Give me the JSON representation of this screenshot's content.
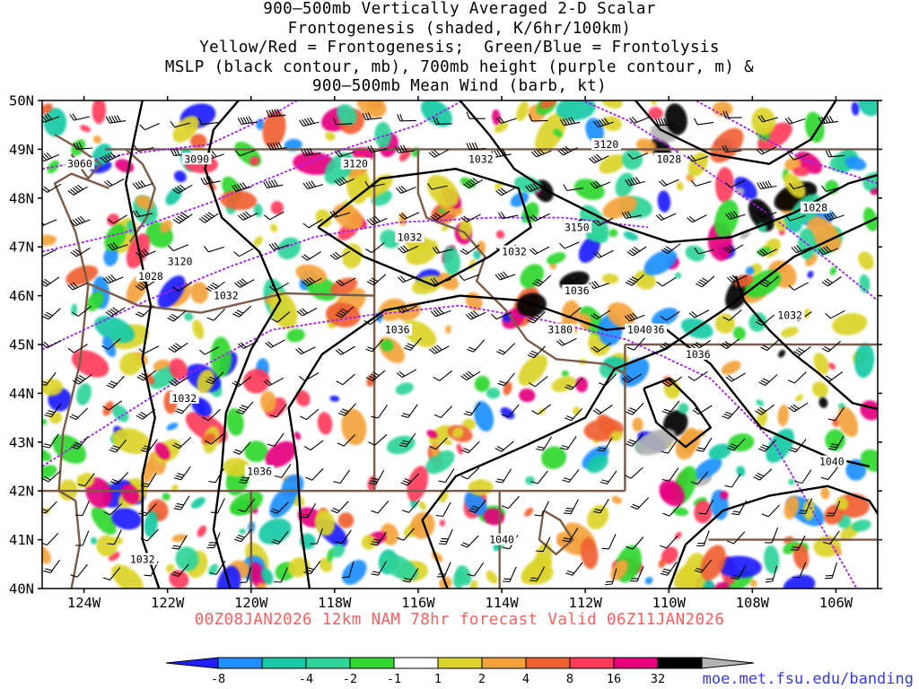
{
  "title_lines": [
    "900–500mb Vertically Averaged 2-D Scalar",
    "Frontogenesis (shaded, K/6hr/100km)",
    "Yellow/Red = Frontogenesis;  Green/Blue = Frontolysis",
    "MSLP (black contour, mb), 700mb height (purple contour, m) &",
    "900–500mb Mean Wind (barb, kt)"
  ],
  "subtitle": "00Z08JAN2026 12km NAM 78hr forecast Valid 06Z11JAN2026",
  "credit": "moe.met.fsu.edu/banding",
  "map": {
    "lon_range": [
      -125,
      -105
    ],
    "lat_range": [
      40,
      50
    ],
    "lon_labels": [
      "124W",
      "122W",
      "120W",
      "118W",
      "116W",
      "114W",
      "112W",
      "110W",
      "108W",
      "106W"
    ],
    "lat_labels": [
      "40N",
      "41N",
      "42N",
      "43N",
      "44N",
      "45N",
      "46N",
      "47N",
      "48N",
      "49N",
      "50N"
    ],
    "colors": {
      "border": "#7a5c4a",
      "mslp": "#000000",
      "height": "#a020f0",
      "barb": "#000000"
    },
    "mslp_labels": [
      "1032",
      "1032",
      "1032",
      "1028",
      "1036",
      "1036",
      "1032",
      "1036",
      "1040",
      "1036",
      "1032",
      "1040",
      "1028",
      "1032",
      "1040",
      "1036",
      "1032",
      "1028"
    ],
    "height_labels": [
      "3060",
      "3090",
      "3120",
      "3120",
      "3150",
      "3120",
      "3180"
    ]
  },
  "colorbar": {
    "ticks": [
      "-8",
      "-4",
      "-2",
      "-1",
      "1",
      "2",
      "4",
      "8",
      "16",
      "32"
    ],
    "colors": [
      "#1f1fff",
      "#1e90ff",
      "#17c9a6",
      "#2ed49a",
      "#2fd72f",
      "#ffffff",
      "#dcd42a",
      "#f4a33a",
      "#f06030",
      "#ff3b5c",
      "#e6007e",
      "#000000",
      "#b4b4b4"
    ]
  }
}
